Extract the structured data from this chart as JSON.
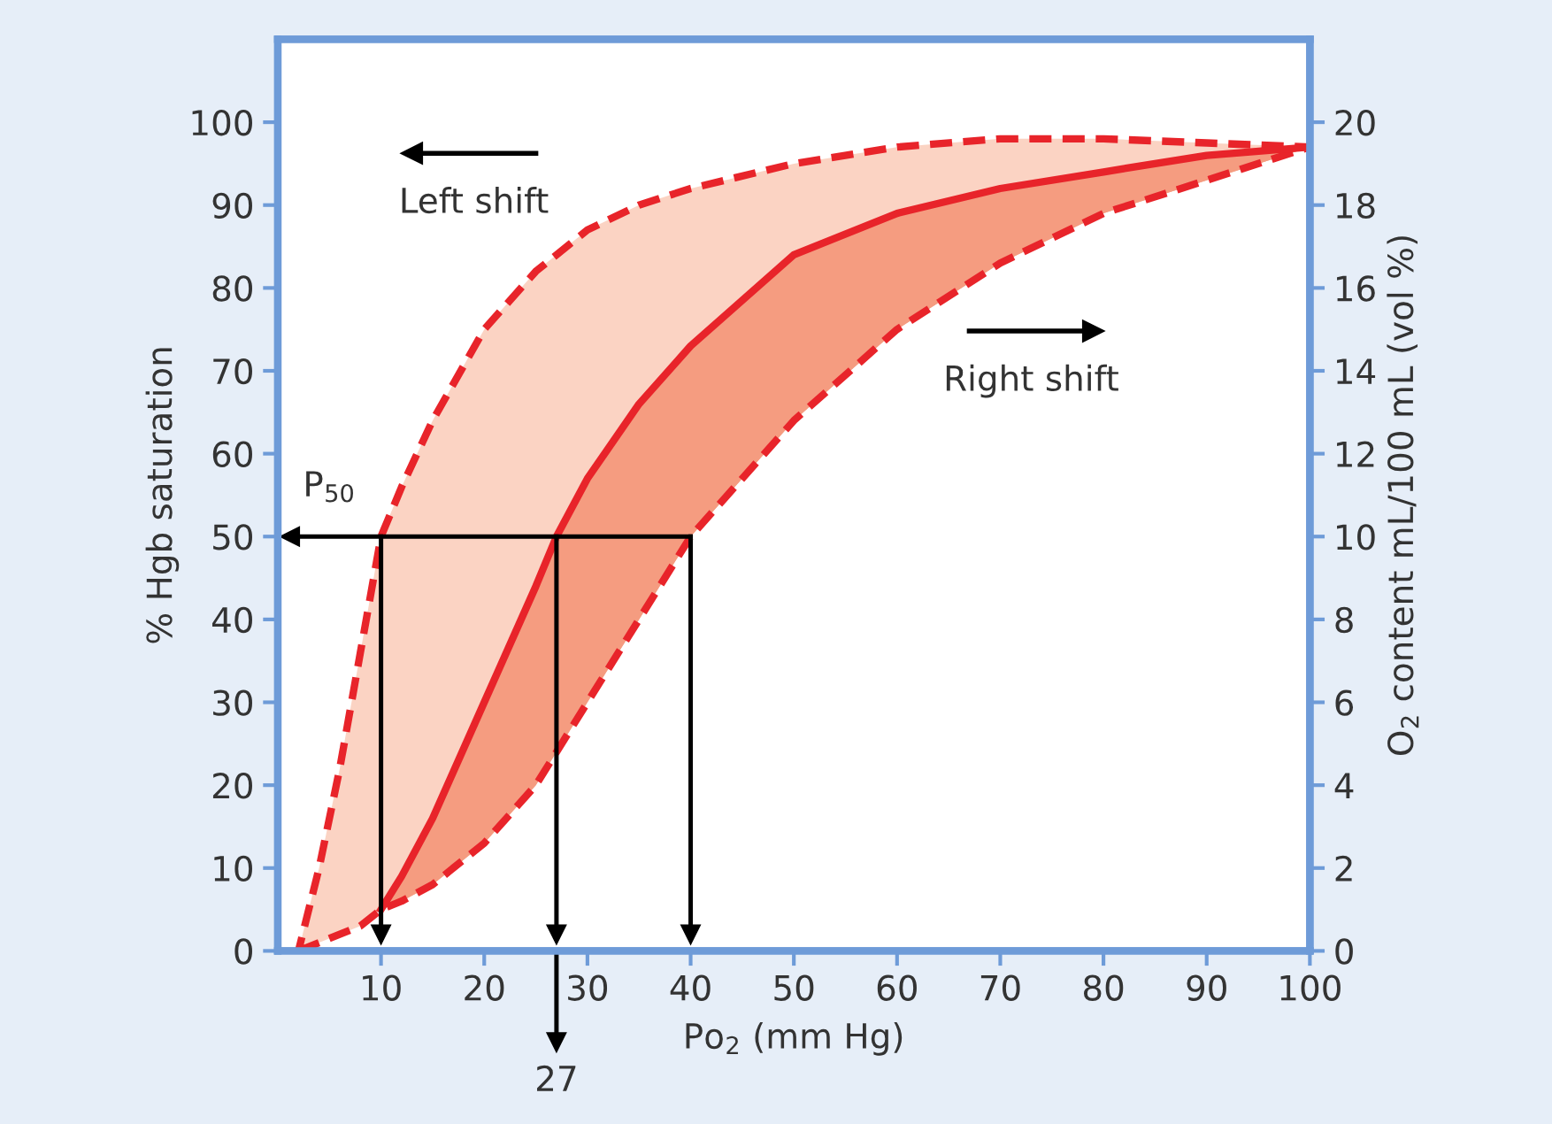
{
  "chart_data": {
    "type": "line",
    "xlabel": "Po$_{2}$ (mm Hg)",
    "ylabel": "% Hgb saturation",
    "y2label": "O$_{2}$ content mL/100 mL (vol %)",
    "x": [
      2,
      4,
      6,
      8,
      10,
      12,
      15,
      20,
      25,
      27,
      30,
      35,
      40,
      50,
      60,
      70,
      80,
      90,
      100
    ],
    "series": [
      {
        "color": "#e8242a",
        "line_style": "solid",
        "values": [
          null,
          null,
          null,
          null,
          5,
          9,
          16,
          30,
          44,
          50,
          57,
          66,
          73,
          84,
          89,
          92,
          94,
          96,
          97
        ],
        "lower": [
          0,
          1,
          2,
          3,
          5,
          6,
          8,
          13,
          20,
          24,
          30,
          40,
          50,
          64,
          75,
          83,
          89,
          93,
          97
        ],
        "upper": [
          0,
          10,
          22,
          36,
          50,
          56,
          64,
          75,
          82,
          84,
          87,
          90,
          92,
          95,
          97,
          98,
          98,
          97.5,
          97
        ]
      }
    ],
    "xlim": [
      0,
      100
    ],
    "xticks": [
      10,
      20,
      30,
      40,
      50,
      60,
      70,
      80,
      90,
      100
    ],
    "ylim": [
      0,
      110
    ],
    "yticks": [
      0,
      10,
      20,
      30,
      40,
      50,
      60,
      70,
      80,
      90,
      100
    ],
    "y2lim": [
      0,
      22
    ],
    "y2ticks": [
      0,
      2,
      4,
      6,
      8,
      10,
      12,
      14,
      16,
      18,
      20
    ],
    "ref_lines": [
      {
        "axis": "y",
        "value": 50,
        "color": "#000000"
      },
      {
        "axis": "x",
        "value": 10,
        "color": "#000000"
      },
      {
        "axis": "x",
        "value": 27,
        "color": "#000000"
      },
      {
        "axis": "x",
        "value": 40,
        "color": "#000000"
      }
    ],
    "annotations": [
      "P$_{50}$",
      "27",
      "Left shift",
      "Right shift"
    ],
    "legend": false,
    "grid": false
  }
}
